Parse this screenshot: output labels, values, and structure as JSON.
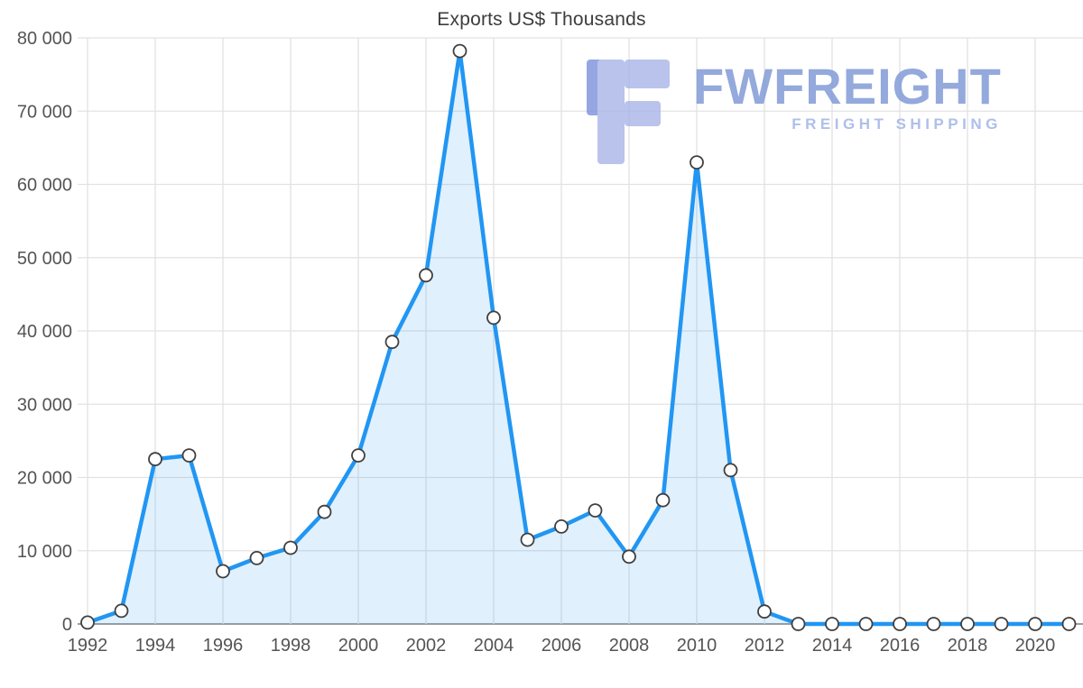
{
  "chart_data": {
    "type": "area",
    "title": "Exports US$ Thousands",
    "x": [
      1992,
      1993,
      1994,
      1995,
      1996,
      1997,
      1998,
      1999,
      2000,
      2001,
      2002,
      2003,
      2004,
      2005,
      2006,
      2007,
      2008,
      2009,
      2010,
      2011,
      2012,
      2013,
      2014,
      2015,
      2016,
      2017,
      2018,
      2019,
      2020,
      2021
    ],
    "values": [
      200,
      1800,
      22500,
      23000,
      7200,
      9000,
      10400,
      15300,
      23000,
      38500,
      47600,
      78200,
      41800,
      11500,
      13300,
      15500,
      9200,
      16900,
      63000,
      21000,
      1700,
      0,
      0,
      0,
      0,
      0,
      0,
      0,
      0,
      0
    ],
    "xlabel": "",
    "ylabel": "",
    "ylim": [
      0,
      80000
    ],
    "ytick_step": 10000,
    "xticks": [
      1992,
      1994,
      1996,
      1998,
      2000,
      2002,
      2004,
      2006,
      2008,
      2010,
      2012,
      2014,
      2016,
      2018,
      2020
    ],
    "grid": true,
    "legend_position": "none",
    "line_color": "#2196f3",
    "fill_color": "rgba(33,150,243,0.14)",
    "marker_fill": "#ffffff",
    "marker_stroke": "#404040",
    "axis_text_color": "#545454",
    "grid_color": "#e2e2e2",
    "axis_line_color": "#9e9e9e"
  },
  "watermark": {
    "brand": "FWFREIGHT",
    "tagline": "FREIGHT SHIPPING",
    "brand_color": "#7c96d4",
    "logo_color_light": "#a9b5e8",
    "logo_color_dark": "#7d90dd"
  }
}
